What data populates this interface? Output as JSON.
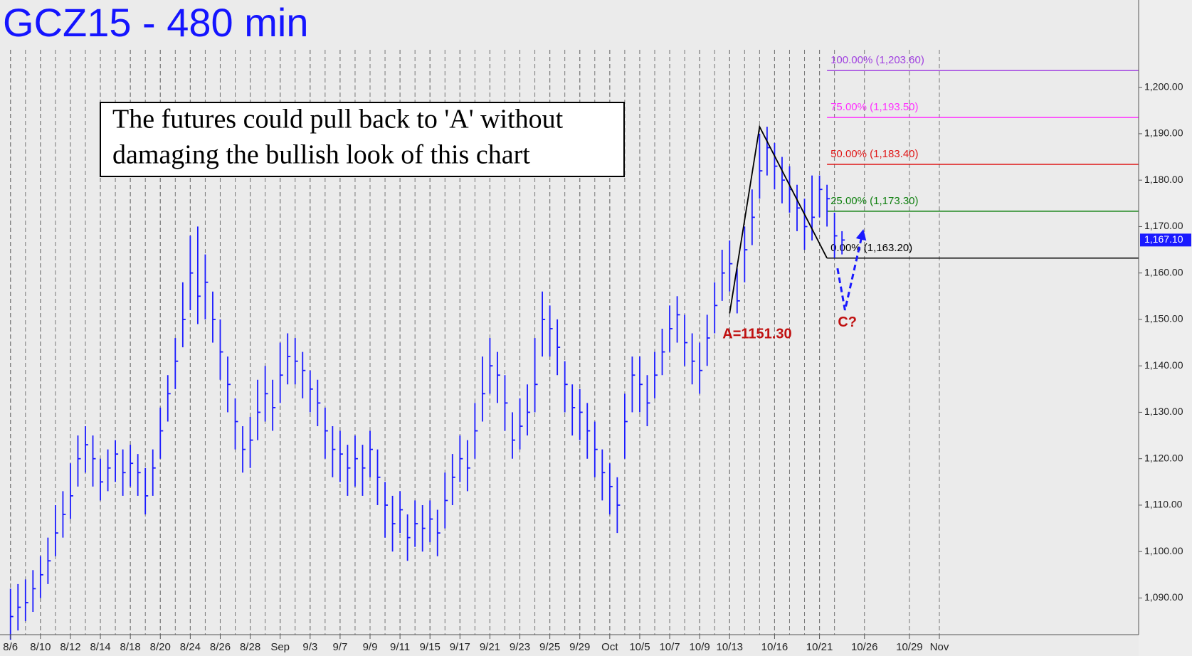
{
  "chart_data": {
    "type": "hlc",
    "title": "GCZ15 - 480 min",
    "annotation": [
      "The futures could pull back to 'A' without",
      "damaging the bullish look of this chart"
    ],
    "color": "#1a1aff",
    "x": [
      0,
      0.5,
      1,
      1.5,
      2,
      2.5,
      3,
      3.5,
      4,
      4.5,
      5,
      5.5,
      6,
      6.5,
      7,
      7.5,
      8,
      8.5,
      9,
      9.5,
      10,
      10.5,
      11,
      11.5,
      12,
      12.5,
      13,
      13.5,
      14,
      14.5,
      15,
      15.5,
      16,
      16.5,
      17,
      17.5,
      18,
      18.5,
      19,
      19.5,
      20,
      20.5,
      21,
      21.5,
      22,
      22.5,
      23,
      23.5,
      24,
      24.5,
      25,
      25.5,
      26,
      26.5,
      27,
      27.5,
      28,
      28.5,
      29,
      29.5,
      30,
      30.5,
      31,
      31.5,
      32,
      32.5,
      33,
      33.5,
      34,
      34.5,
      35,
      35.5,
      36,
      36.5,
      37,
      37.5,
      38,
      38.5,
      39,
      39.5,
      40,
      40.5,
      41,
      41.5,
      42,
      42.5,
      43,
      43.5,
      44,
      44.5,
      45,
      45.5,
      46,
      46.5,
      47,
      47.5,
      48,
      48.5,
      49,
      49.5,
      50,
      50.5,
      51,
      51.5,
      52,
      52.5,
      53,
      53.5,
      54,
      54.5,
      55,
      55.5
    ],
    "high": [
      1092,
      1093,
      1094,
      1096,
      1099,
      1103,
      1110,
      1113,
      1119,
      1125,
      1127,
      1125,
      1120,
      1122,
      1124,
      1122,
      1123,
      1121,
      1118,
      1122,
      1131,
      1138,
      1146,
      1158,
      1168,
      1170,
      1164,
      1156,
      1150,
      1142,
      1133,
      1127,
      1129,
      1137,
      1140,
      1137,
      1145,
      1147,
      1146,
      1143,
      1139,
      1137,
      1131,
      1127,
      1126,
      1123,
      1125,
      1123,
      1126,
      1122,
      1115,
      1112,
      1113,
      1108,
      1111,
      1110,
      1111,
      1109,
      1117,
      1121,
      1125,
      1124,
      1132,
      1142,
      1146,
      1143,
      1138,
      1130,
      1133,
      1136,
      1146,
      1156,
      1153,
      1150,
      1141,
      1136,
      1135,
      1132,
      1128,
      1122,
      1119,
      1116,
      1134,
      1142,
      1142,
      1138,
      1143,
      1148,
      1153,
      1155,
      1151,
      1147,
      1145,
      1151,
      1158,
      1165,
      1167,
      1161,
      1170,
      1178,
      1190,
      1191.5,
      1188,
      1185,
      1183,
      1179,
      1176,
      1181,
      1181,
      1179,
      1173,
      1169
    ],
    "low": [
      1081,
      1083,
      1085,
      1087,
      1090,
      1093,
      1099,
      1103,
      1107,
      1114,
      1117,
      1114,
      1111,
      1113,
      1115,
      1112,
      1114,
      1112,
      1108,
      1112,
      1120,
      1128,
      1135,
      1144,
      1152,
      1149,
      1150,
      1145,
      1137,
      1130,
      1122,
      1117,
      1118,
      1124,
      1128,
      1126,
      1132,
      1136,
      1136,
      1133,
      1130,
      1127,
      1120,
      1116,
      1115,
      1112,
      1114,
      1112,
      1116,
      1110,
      1103,
      1100,
      1104,
      1098,
      1101,
      1100,
      1102,
      1099,
      1105,
      1110,
      1115,
      1113,
      1120,
      1128,
      1134,
      1132,
      1126,
      1120,
      1122,
      1125,
      1130,
      1142,
      1142,
      1138,
      1130,
      1125,
      1124,
      1120,
      1116,
      1111,
      1108,
      1104,
      1120,
      1130,
      1130,
      1127,
      1133,
      1138,
      1143,
      1145,
      1140,
      1136,
      1134,
      1140,
      1147,
      1154,
      1156,
      1151.3,
      1158,
      1166,
      1176,
      1181,
      1178,
      1175,
      1173,
      1169,
      1165,
      1167,
      1172,
      1170,
      1163.2,
      1164
    ],
    "close": [
      1086,
      1088,
      1089,
      1092,
      1095,
      1098,
      1104,
      1108,
      1112,
      1120,
      1123,
      1120,
      1115,
      1118,
      1121,
      1117,
      1119,
      1117,
      1112,
      1118,
      1126,
      1134,
      1141,
      1150,
      1160,
      1155,
      1158,
      1150,
      1143,
      1136,
      1128,
      1122,
      1124,
      1130,
      1134,
      1131,
      1138,
      1142,
      1141,
      1139,
      1135,
      1132,
      1126,
      1122,
      1121,
      1118,
      1120,
      1118,
      1122,
      1116,
      1110,
      1106,
      1109,
      1103,
      1106,
      1105,
      1107,
      1104,
      1111,
      1116,
      1120,
      1118,
      1126,
      1134,
      1140,
      1138,
      1132,
      1124,
      1127,
      1130,
      1136,
      1150,
      1148,
      1144,
      1136,
      1131,
      1130,
      1126,
      1122,
      1117,
      1114,
      1110,
      1128,
      1138,
      1136,
      1132,
      1138,
      1143,
      1148,
      1151,
      1145,
      1141,
      1139,
      1146,
      1153,
      1160,
      1162,
      1154,
      1165,
      1172,
      1182,
      1187,
      1183,
      1180,
      1178,
      1174,
      1170,
      1172,
      1178,
      1176,
      1168,
      1167.1
    ],
    "last_price": {
      "value": 1167.1,
      "label": "1,167.10"
    },
    "xlim": [
      -0.7,
      75.3
    ],
    "xticks": [
      {
        "value": 0,
        "label": "8/6"
      },
      {
        "value": 2,
        "label": "8/10"
      },
      {
        "value": 4,
        "label": "8/12"
      },
      {
        "value": 6,
        "label": "8/14"
      },
      {
        "value": 8,
        "label": "8/18"
      },
      {
        "value": 10,
        "label": "8/20"
      },
      {
        "value": 12,
        "label": "8/24"
      },
      {
        "value": 14,
        "label": "8/26"
      },
      {
        "value": 16,
        "label": "8/28"
      },
      {
        "value": 18,
        "label": "Sep"
      },
      {
        "value": 20,
        "label": "9/3"
      },
      {
        "value": 22,
        "label": "9/7"
      },
      {
        "value": 24,
        "label": "9/9"
      },
      {
        "value": 26,
        "label": "9/11"
      },
      {
        "value": 28,
        "label": "9/15"
      },
      {
        "value": 30,
        "label": "9/17"
      },
      {
        "value": 32,
        "label": "9/21"
      },
      {
        "value": 34,
        "label": "9/23"
      },
      {
        "value": 36,
        "label": "9/25"
      },
      {
        "value": 38,
        "label": "9/29"
      },
      {
        "value": 40,
        "label": "Oct"
      },
      {
        "value": 42,
        "label": "10/5"
      },
      {
        "value": 44,
        "label": "10/7"
      },
      {
        "value": 46,
        "label": "10/9"
      },
      {
        "value": 48,
        "label": "10/13"
      },
      {
        "value": 51,
        "label": "10/16"
      },
      {
        "value": 54,
        "label": "10/21"
      },
      {
        "value": 57,
        "label": "10/26"
      },
      {
        "value": 60,
        "label": "10/29"
      },
      {
        "value": 62,
        "label": "Nov"
      }
    ],
    "ylim": [
      1082.1,
      1218.8
    ],
    "yticks": [
      {
        "value": 1090,
        "label": "1,090.00"
      },
      {
        "value": 1100,
        "label": "1,100.00"
      },
      {
        "value": 1110,
        "label": "1,110.00"
      },
      {
        "value": 1120,
        "label": "1,120.00"
      },
      {
        "value": 1130,
        "label": "1,130.00"
      },
      {
        "value": 1140,
        "label": "1,140.00"
      },
      {
        "value": 1150,
        "label": "1,150.00"
      },
      {
        "value": 1160,
        "label": "1,160.00"
      },
      {
        "value": 1170,
        "label": "1,170.00"
      },
      {
        "value": 1180,
        "label": "1,180.00"
      },
      {
        "value": 1190,
        "label": "1,190.00"
      },
      {
        "value": 1200,
        "label": "1,200.00"
      }
    ],
    "fib_levels": [
      {
        "value": 1203.6,
        "label": "100.00% (1,203.60)",
        "color": "#a040e0"
      },
      {
        "value": 1193.5,
        "label": "75.00% (1,193.50)",
        "color": "#ff30ff"
      },
      {
        "value": 1183.4,
        "label": "50.00% (1,183.40)",
        "color": "#e01818"
      },
      {
        "value": 1173.3,
        "label": "25.00% (1,173.30)",
        "color": "#108010"
      },
      {
        "value": 1163.2,
        "label": "0.00% (1,163.20)",
        "color": "#000000"
      }
    ],
    "pattern": {
      "x": [
        48,
        50,
        54.5
      ],
      "y": [
        1151.3,
        1191.5,
        1163.2
      ],
      "label": "A=1151.30"
    },
    "projection": {
      "x": [
        55.2,
        55.7,
        56.9
      ],
      "y": [
        1161,
        1152,
        1169
      ],
      "label": "C?"
    }
  }
}
